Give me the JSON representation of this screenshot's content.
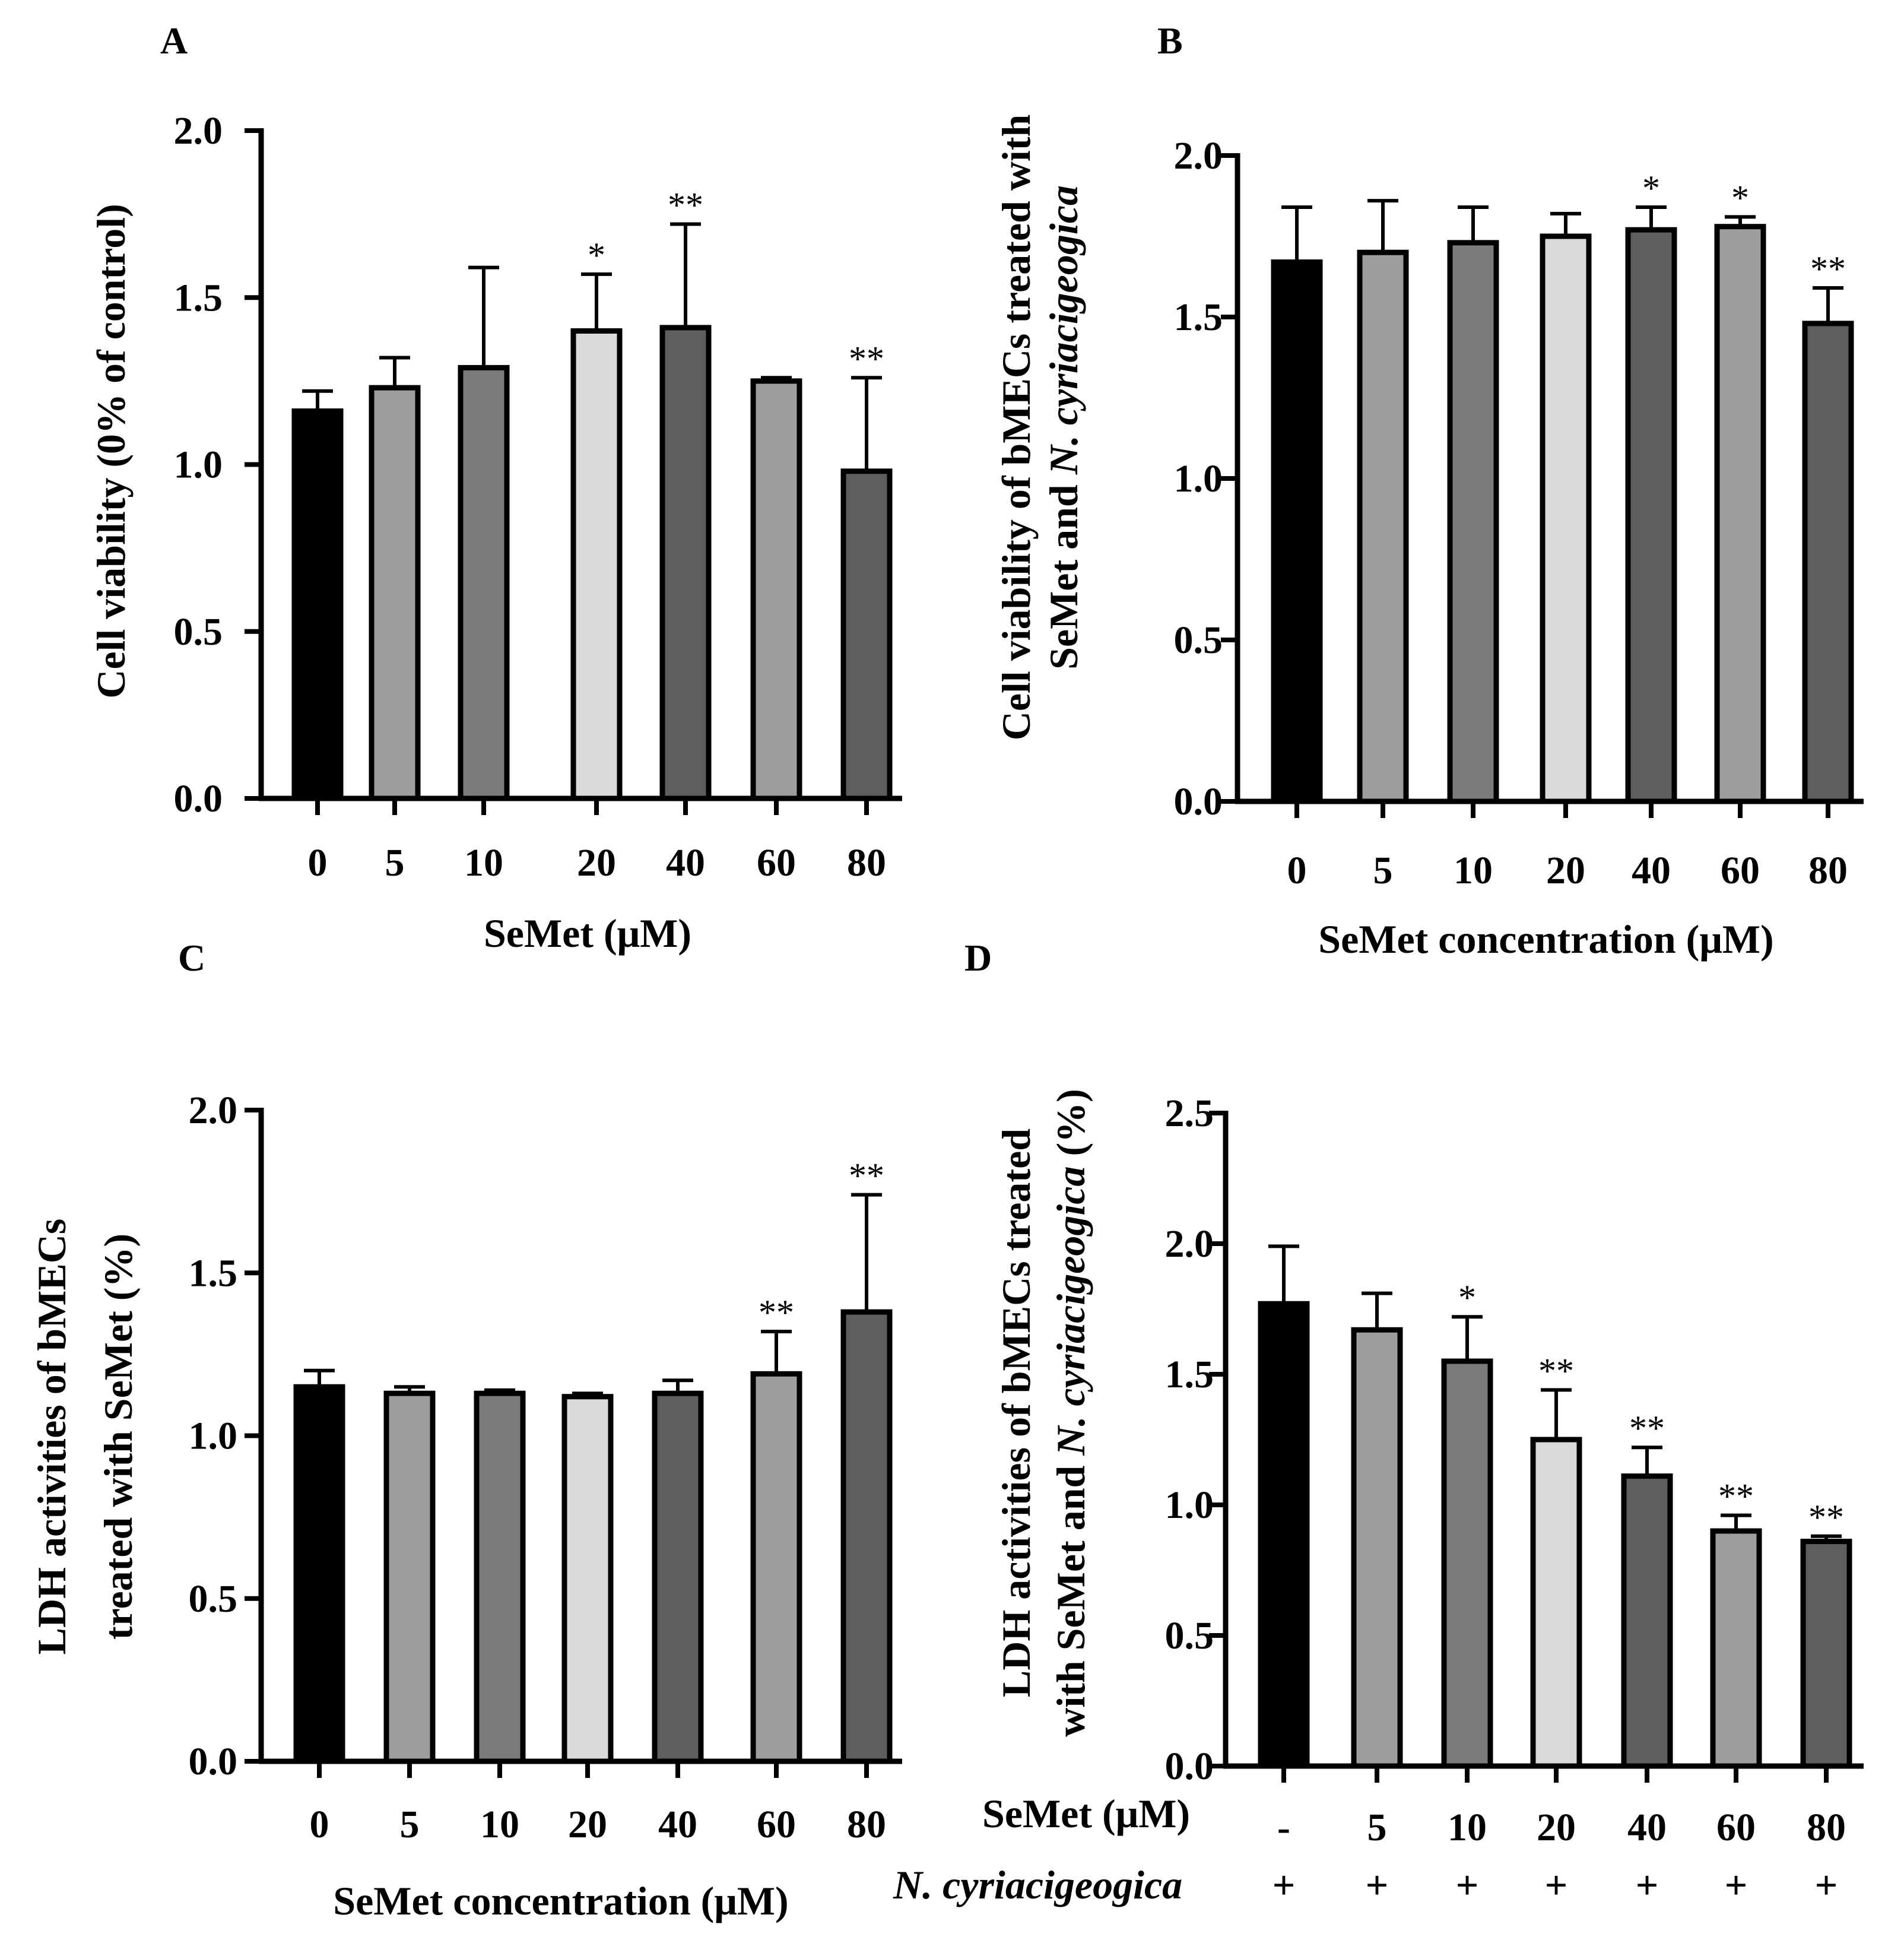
{
  "colors": {
    "outline": "#000000",
    "bar_fills": [
      "#000000",
      "#9d9d9d",
      "#7b7b7b",
      "#dadada",
      "#5e5e5e",
      "#9d9d9d",
      "#5e5e5e"
    ]
  },
  "chart_data": [
    {
      "panel": "A",
      "type": "bar",
      "title": "",
      "xlabel": "SeMet (μM)",
      "ylabel": "Cell viability (0% of control)",
      "categories": [
        "0",
        "5",
        "10",
        "20",
        "40",
        "60",
        "80"
      ],
      "values": [
        1.16,
        1.23,
        1.29,
        1.4,
        1.41,
        1.25,
        0.98
      ],
      "errors": [
        0.06,
        0.09,
        0.3,
        0.17,
        0.31,
        0.01,
        0.28
      ],
      "significance": [
        "",
        "",
        "",
        "*",
        "**",
        "",
        "**"
      ],
      "ylim": [
        0,
        2.0
      ],
      "yticks": [
        0.0,
        0.5,
        1.0,
        1.5,
        2.0
      ],
      "ytick_labels": [
        "0.0",
        "0.5",
        "1.0",
        "1.5",
        "2.0"
      ]
    },
    {
      "panel": "B",
      "type": "bar",
      "title": "",
      "xlabel": "SeMet concentration (μM)",
      "ylabel_line1": "Cell viability of bMECs treated with",
      "ylabel_line2_prefix": "SeMet and ",
      "ylabel_line2_italic": "N. cyriacigeogica",
      "categories": [
        "0",
        "5",
        "10",
        "20",
        "40",
        "60",
        "80"
      ],
      "values": [
        1.67,
        1.7,
        1.73,
        1.75,
        1.77,
        1.78,
        1.48
      ],
      "errors": [
        0.17,
        0.16,
        0.11,
        0.07,
        0.07,
        0.03,
        0.11
      ],
      "significance": [
        "",
        "",
        "",
        "",
        "*",
        "*",
        "**"
      ],
      "ylim": [
        0,
        2.0
      ],
      "yticks": [
        0.0,
        0.5,
        1.0,
        1.5,
        2.0
      ],
      "ytick_labels": [
        "0.0",
        "0.5",
        "1.0",
        "1.5",
        "2.0"
      ]
    },
    {
      "panel": "C",
      "type": "bar",
      "title": "",
      "xlabel": "SeMet concentration (μM)",
      "ylabel_line1": "LDH activities of bMECs",
      "ylabel_line2": "treated with SeMet (%)",
      "categories": [
        "0",
        "5",
        "10",
        "20",
        "40",
        "60",
        "80"
      ],
      "values": [
        1.15,
        1.13,
        1.13,
        1.12,
        1.13,
        1.19,
        1.38
      ],
      "errors": [
        0.05,
        0.02,
        0.01,
        0.01,
        0.04,
        0.13,
        0.36
      ],
      "significance": [
        "",
        "",
        "",
        "",
        "",
        "**",
        "**"
      ],
      "ylim": [
        0,
        2.0
      ],
      "yticks": [
        0.0,
        0.5,
        1.0,
        1.5,
        2.0
      ],
      "ytick_labels": [
        "0.0",
        "0.5",
        "1.0",
        "1.5",
        "2.0"
      ]
    },
    {
      "panel": "D",
      "type": "bar",
      "title": "",
      "ylabel_line1": "LDH activities of bMECs treated",
      "ylabel_line2_prefix": "with SeMet and ",
      "ylabel_line2_italic": "N. cyriacigeogica",
      "ylabel_line2_suffix": " (%)",
      "categories": [
        "-",
        "5",
        "10",
        "20",
        "40",
        "60",
        "80"
      ],
      "values": [
        1.77,
        1.67,
        1.55,
        1.25,
        1.11,
        0.9,
        0.86
      ],
      "errors": [
        0.22,
        0.14,
        0.17,
        0.19,
        0.11,
        0.06,
        0.02
      ],
      "significance": [
        "",
        "",
        "*",
        "**",
        "**",
        "**",
        "**"
      ],
      "ylim": [
        0,
        2.5
      ],
      "yticks": [
        0.0,
        0.5,
        1.0,
        1.5,
        2.0,
        2.5
      ],
      "ytick_labels": [
        "0.0",
        "0.5",
        "1.0",
        "1.5",
        "2.0",
        "2.5"
      ],
      "row1_label": "SeMet (μM)",
      "row2_label": "N. cyriacigeogica",
      "row2_values": [
        "+",
        "+",
        "+",
        "+",
        "+",
        "+",
        "+"
      ]
    }
  ]
}
